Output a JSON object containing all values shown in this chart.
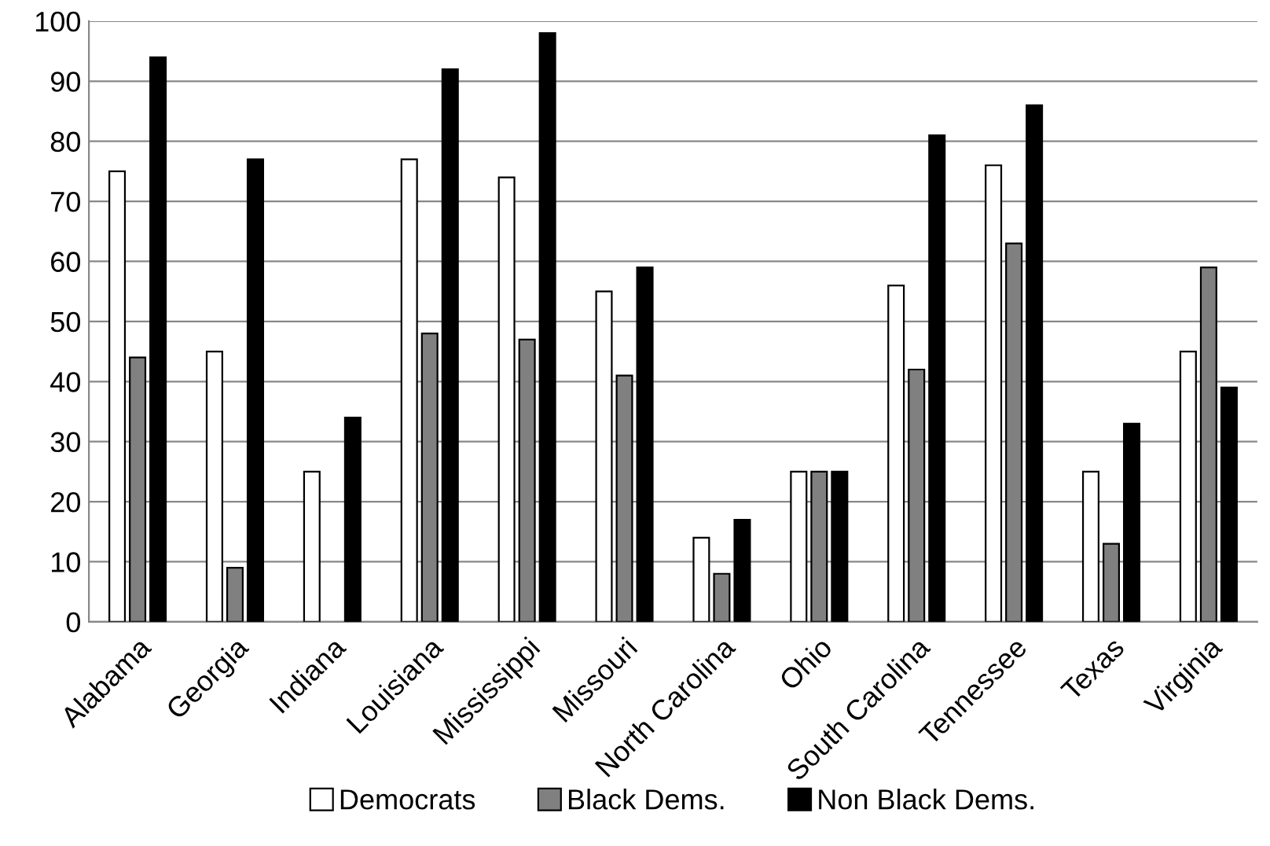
{
  "chart_data": {
    "type": "bar",
    "categories": [
      "Alabama",
      "Georgia",
      "Indiana",
      "Louisiana",
      "Mississippi",
      "Missouri",
      "North Carolina",
      "Ohio",
      "South Carolina",
      "Tennessee",
      "Texas",
      "Virginia"
    ],
    "series": [
      {
        "name": "Democrats",
        "color": "#ffffff",
        "values": [
          75,
          45,
          25,
          77,
          74,
          55,
          14,
          25,
          56,
          76,
          25,
          45
        ]
      },
      {
        "name": "Black Dems.",
        "color": "#808080",
        "values": [
          44,
          9,
          null,
          48,
          47,
          41,
          8,
          25,
          42,
          63,
          13,
          59
        ]
      },
      {
        "name": "Non Black Dems.",
        "color": "#000000",
        "values": [
          94,
          77,
          34,
          92,
          98,
          59,
          17,
          25,
          81,
          86,
          33,
          39
        ]
      }
    ],
    "ylim": [
      0,
      100
    ],
    "yticks": [
      0,
      10,
      20,
      30,
      40,
      50,
      60,
      70,
      80,
      90,
      100
    ],
    "grid": "y",
    "legend": "bottom"
  }
}
